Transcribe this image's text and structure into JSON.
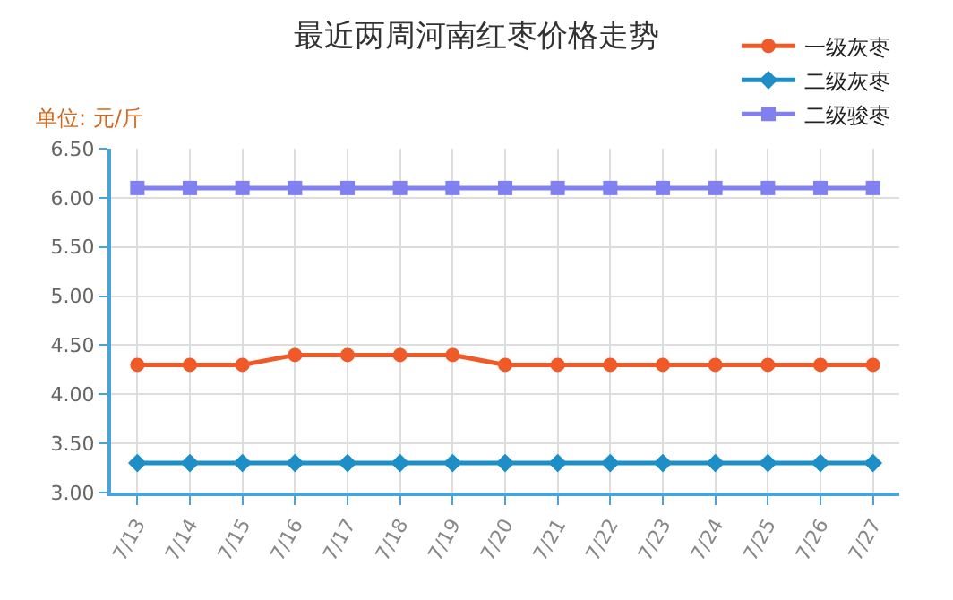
{
  "chart_data": {
    "type": "line",
    "title": "最近两周河南红枣价格走势",
    "ylabel": "单位: 元/斤",
    "categories": [
      "7/13",
      "7/14",
      "7/15",
      "7/16",
      "7/17",
      "7/18",
      "7/19",
      "7/20",
      "7/21",
      "7/22",
      "7/23",
      "7/24",
      "7/25",
      "7/26",
      "7/27"
    ],
    "series": [
      {
        "name": "一级灰枣",
        "color": "#f05a28",
        "marker": "circle",
        "values": [
          4.3,
          4.3,
          4.3,
          4.4,
          4.4,
          4.4,
          4.4,
          4.3,
          4.3,
          4.3,
          4.3,
          4.3,
          4.3,
          4.3,
          4.3
        ]
      },
      {
        "name": "二级灰枣",
        "color": "#1e8fc6",
        "marker": "diamond",
        "values": [
          3.3,
          3.3,
          3.3,
          3.3,
          3.3,
          3.3,
          3.3,
          3.3,
          3.3,
          3.3,
          3.3,
          3.3,
          3.3,
          3.3,
          3.3
        ]
      },
      {
        "name": "二级骏枣",
        "color": "#8080f0",
        "marker": "square",
        "values": [
          6.1,
          6.1,
          6.1,
          6.1,
          6.1,
          6.1,
          6.1,
          6.1,
          6.1,
          6.1,
          6.1,
          6.1,
          6.1,
          6.1,
          6.1
        ]
      }
    ],
    "ylim": [
      3,
      6.5
    ],
    "yticks": [
      {
        "value": 3,
        "label": "3.00"
      },
      {
        "value": 3.5,
        "label": "3.50"
      },
      {
        "value": 4,
        "label": "4.00"
      },
      {
        "value": 4.5,
        "label": "4.50"
      },
      {
        "value": 5,
        "label": "5.00"
      },
      {
        "value": 5.5,
        "label": "5.50"
      },
      {
        "value": 6,
        "label": "6.00"
      },
      {
        "value": 6.5,
        "label": "6.50"
      }
    ],
    "grid": true,
    "legend": "top right",
    "line_style": "solid"
  }
}
